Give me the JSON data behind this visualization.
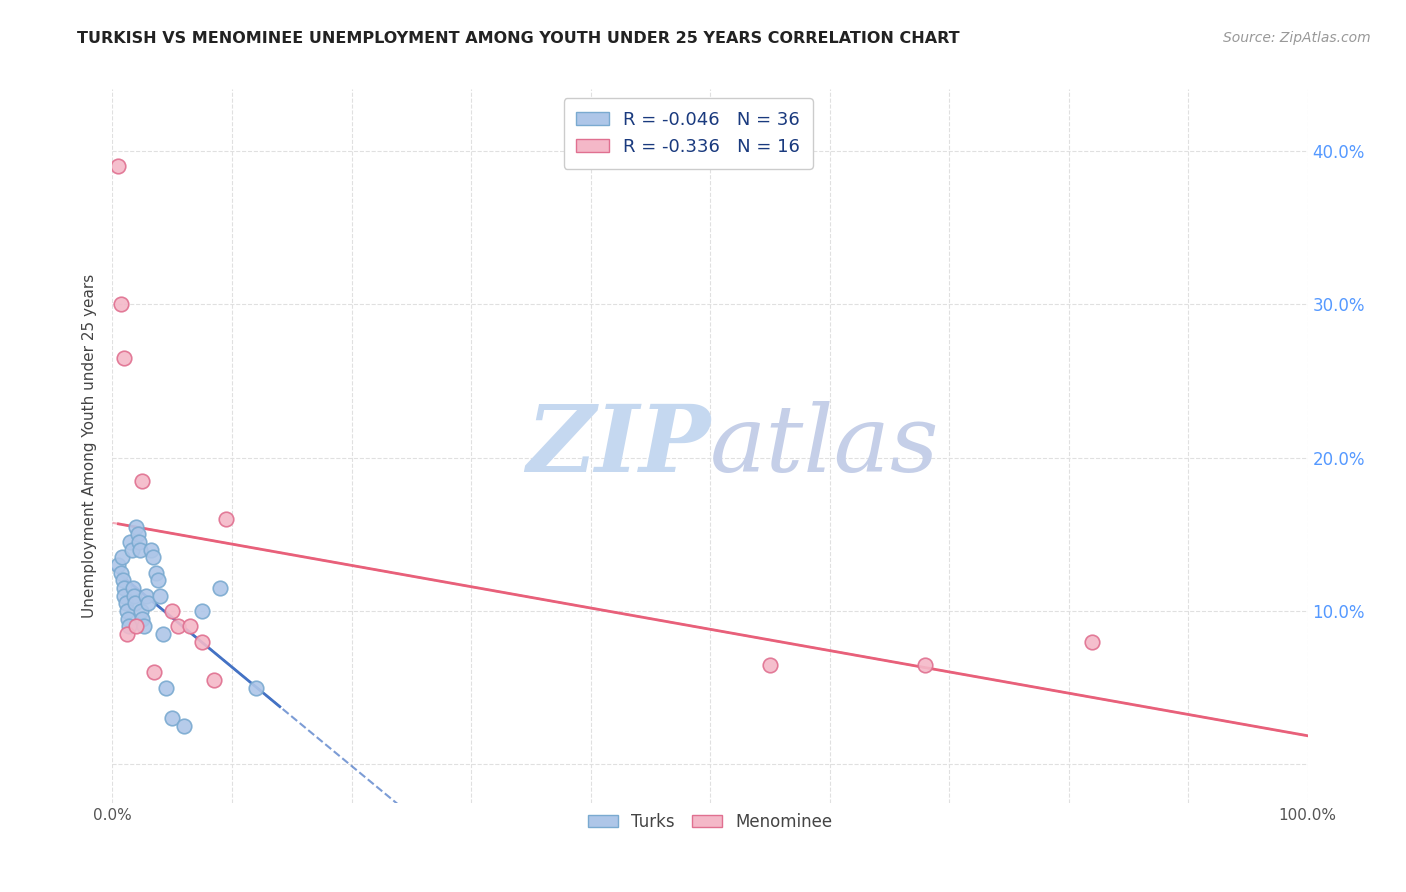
{
  "title": "TURKISH VS MENOMINEE UNEMPLOYMENT AMONG YOUTH UNDER 25 YEARS CORRELATION CHART",
  "source": "Source: ZipAtlas.com",
  "ylabel": "Unemployment Among Youth under 25 years",
  "xlim": [
    0,
    1.0
  ],
  "ylim": [
    -0.025,
    0.44
  ],
  "xticks": [
    0.0,
    0.1,
    0.2,
    0.3,
    0.4,
    0.5,
    0.6,
    0.7,
    0.8,
    0.9,
    1.0
  ],
  "xticklabels": [
    "0.0%",
    "",
    "",
    "",
    "",
    "",
    "",
    "",
    "",
    "",
    "100.0%"
  ],
  "yticks": [
    0.0,
    0.1,
    0.2,
    0.3,
    0.4
  ],
  "yticklabels_right": [
    "",
    "10.0%",
    "20.0%",
    "30.0%",
    "40.0%"
  ],
  "turks_color": "#aec6e8",
  "turks_edge_color": "#7aaad0",
  "menominee_color": "#f4b8c8",
  "menominee_edge_color": "#e07090",
  "turks_line_color": "#4472c4",
  "menominee_line_color": "#e8607a",
  "R_turks": -0.046,
  "N_turks": 36,
  "R_menominee": -0.336,
  "N_menominee": 16,
  "turks_x": [
    0.005,
    0.007,
    0.008,
    0.009,
    0.01,
    0.01,
    0.011,
    0.012,
    0.013,
    0.014,
    0.015,
    0.016,
    0.017,
    0.018,
    0.019,
    0.02,
    0.021,
    0.022,
    0.023,
    0.024,
    0.025,
    0.026,
    0.028,
    0.03,
    0.032,
    0.034,
    0.036,
    0.038,
    0.04,
    0.042,
    0.045,
    0.05,
    0.06,
    0.075,
    0.09,
    0.12
  ],
  "turks_y": [
    0.13,
    0.125,
    0.135,
    0.12,
    0.115,
    0.11,
    0.105,
    0.1,
    0.095,
    0.09,
    0.145,
    0.14,
    0.115,
    0.11,
    0.105,
    0.155,
    0.15,
    0.145,
    0.14,
    0.1,
    0.095,
    0.09,
    0.11,
    0.105,
    0.14,
    0.135,
    0.125,
    0.12,
    0.11,
    0.085,
    0.05,
    0.03,
    0.025,
    0.1,
    0.115,
    0.05
  ],
  "menominee_x": [
    0.005,
    0.007,
    0.01,
    0.012,
    0.02,
    0.025,
    0.035,
    0.05,
    0.055,
    0.065,
    0.075,
    0.085,
    0.095,
    0.55,
    0.68,
    0.82
  ],
  "menominee_y": [
    0.39,
    0.3,
    0.265,
    0.085,
    0.09,
    0.185,
    0.06,
    0.1,
    0.09,
    0.09,
    0.08,
    0.055,
    0.16,
    0.065,
    0.065,
    0.08
  ],
  "watermark_zip": "ZIP",
  "watermark_atlas": "atlas",
  "watermark_color_zip": "#c5d8f0",
  "watermark_color_atlas": "#c5cfe8",
  "grid_color": "#e0e0e0"
}
